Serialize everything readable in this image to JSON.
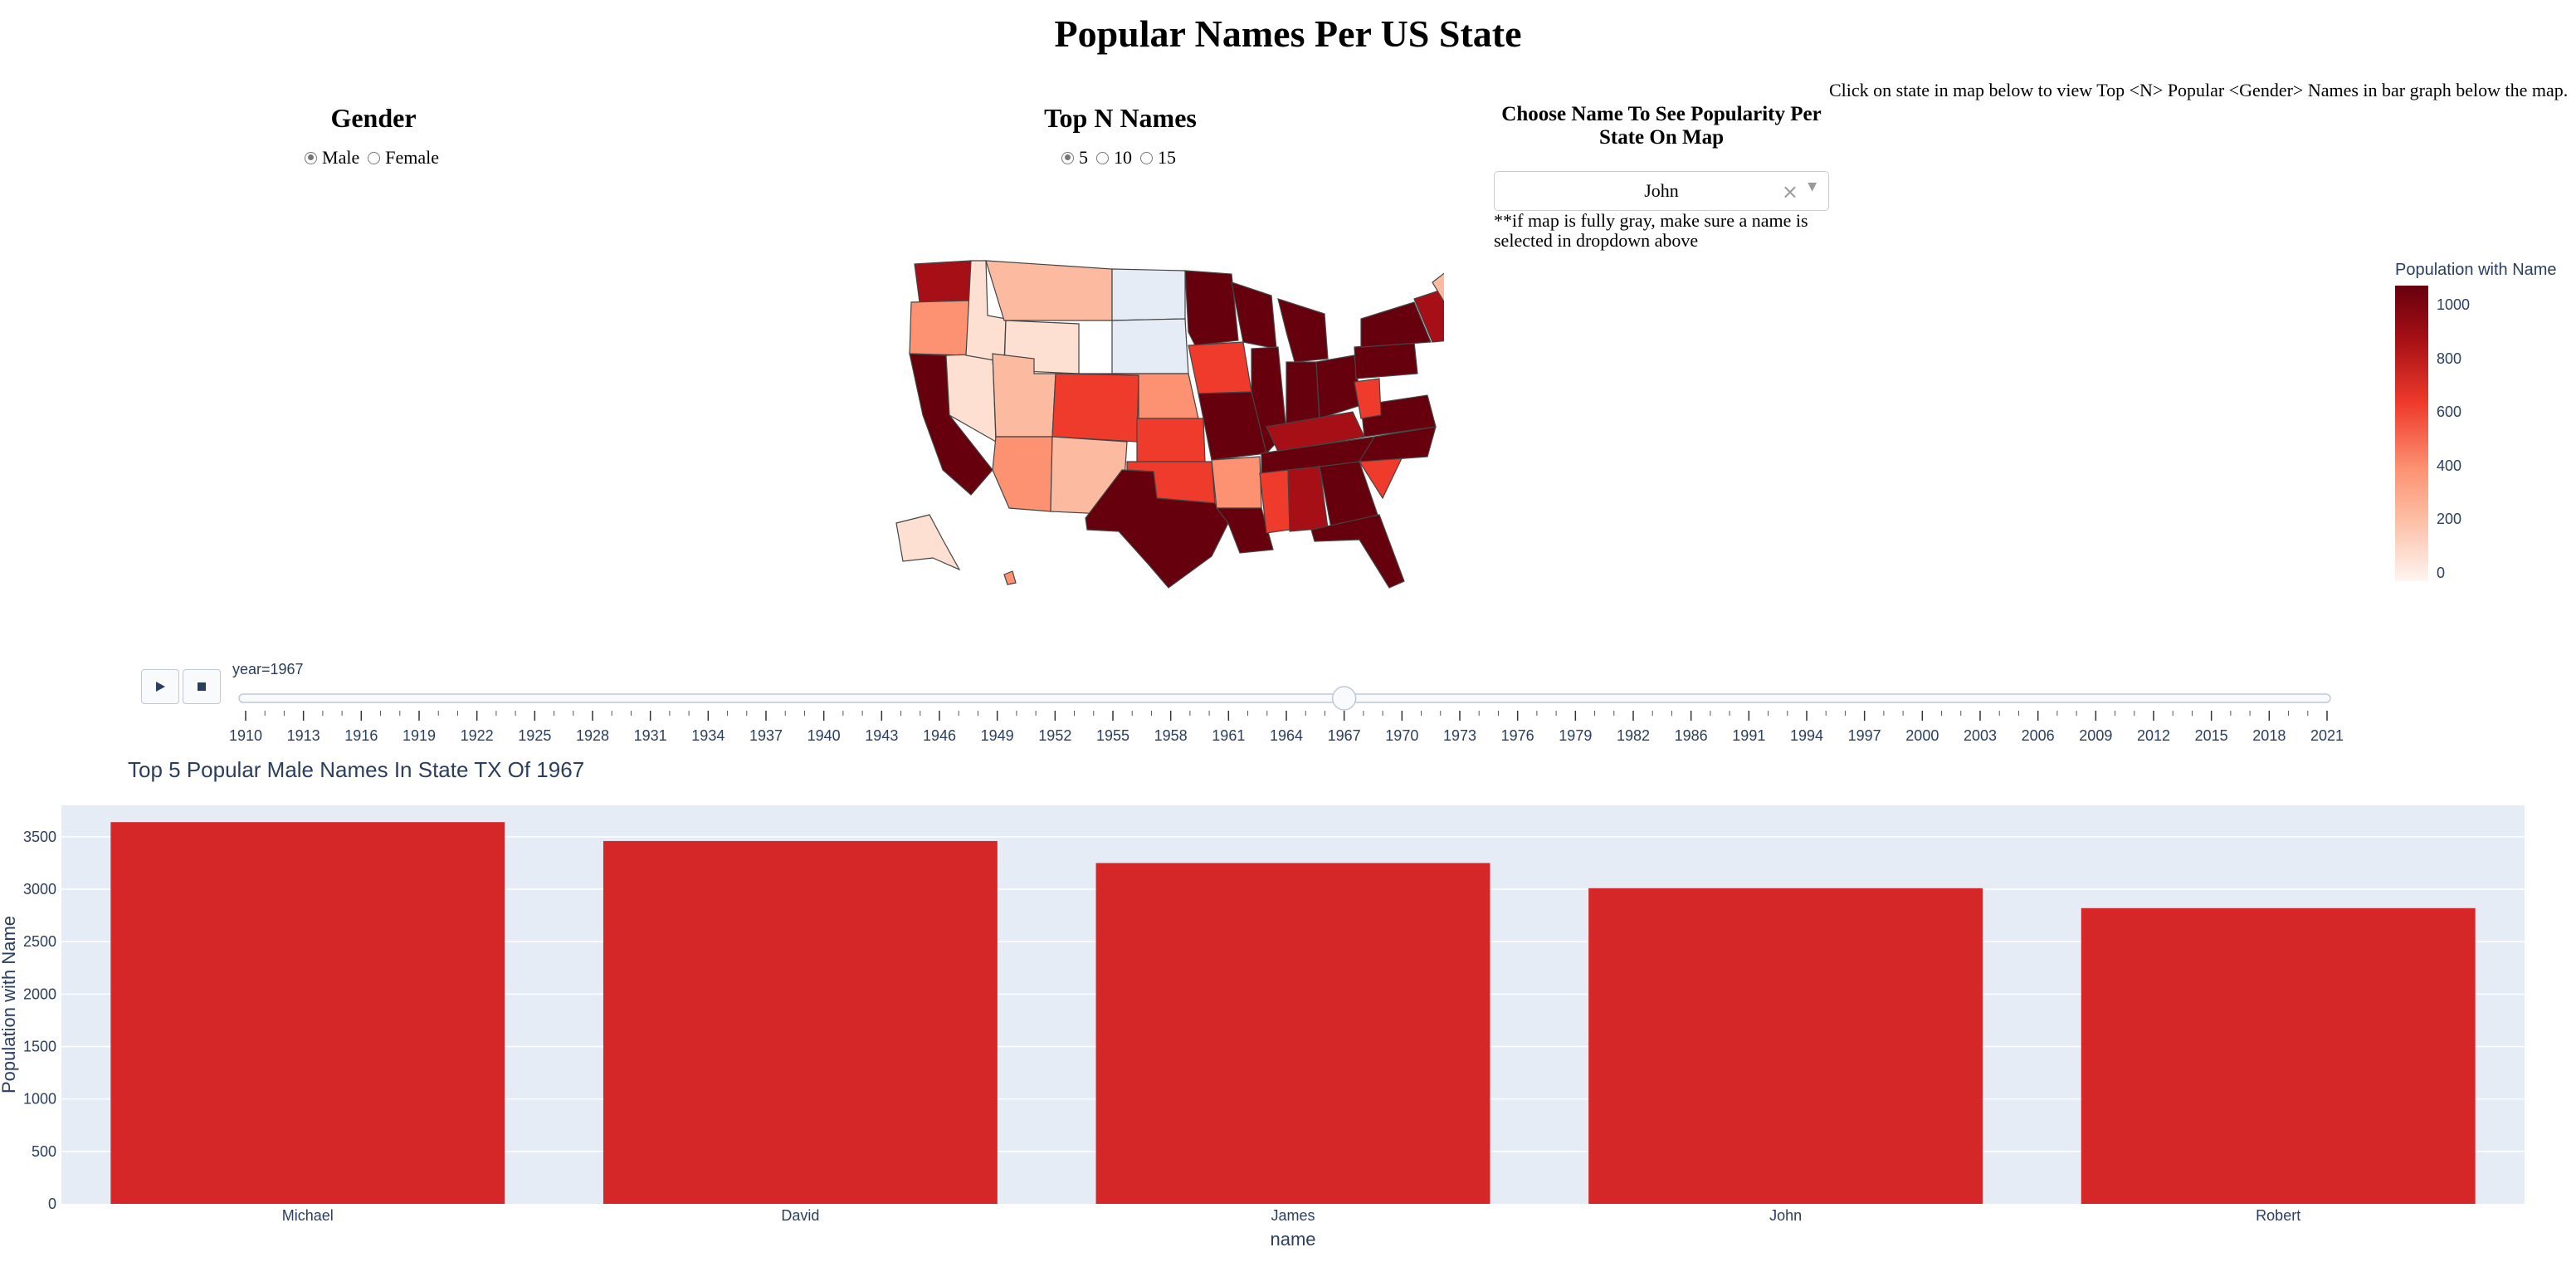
{
  "page": {
    "title": "Popular Names Per US State"
  },
  "gender": {
    "heading": "Gender",
    "options": [
      {
        "label": "Male",
        "selected": true
      },
      {
        "label": "Female",
        "selected": false
      }
    ]
  },
  "topn": {
    "heading": "Top N Names",
    "options": [
      {
        "label": "5",
        "selected": true
      },
      {
        "label": "10",
        "selected": false
      },
      {
        "label": "15",
        "selected": false
      }
    ]
  },
  "name_picker": {
    "heading": "Choose Name To See Popularity Per State On Map",
    "value": "John",
    "note": "**if map is fully gray, make sure a name is selected in dropdown above"
  },
  "instructions": "Click on state in map below to view Top <N> Popular <Gender> Names in bar graph below the map.",
  "map": {
    "colorbar": {
      "title": "Population with Name",
      "ticks": [
        "0",
        "200",
        "400",
        "600",
        "800",
        "1000"
      ]
    },
    "colors": {
      "darkest": "#67000d",
      "dark": "#a50f15",
      "mid": "#ef3b2c",
      "light": "#fc9272",
      "lighter": "#fcbba1",
      "lightest": "#fee0d2",
      "nodata": "#e5ecf6"
    }
  },
  "slider": {
    "label": "year=1967",
    "current_year": 1967,
    "years": [
      "1910",
      "1913",
      "1916",
      "1919",
      "1922",
      "1925",
      "1928",
      "1931",
      "1934",
      "1937",
      "1940",
      "1943",
      "1946",
      "1949",
      "1952",
      "1955",
      "1958",
      "1961",
      "1964",
      "1967",
      "1970",
      "1973",
      "1976",
      "1979",
      "1982",
      "1986",
      "1991",
      "1994",
      "1997",
      "2000",
      "2003",
      "2006",
      "2009",
      "2012",
      "2015",
      "2018",
      "2021"
    ]
  },
  "chart_data": {
    "type": "bar",
    "title": "Top 5 Popular Male Names In State TX Of 1967",
    "categories": [
      "Michael",
      "David",
      "James",
      "John",
      "Robert"
    ],
    "values": [
      3640,
      3460,
      3250,
      3010,
      2820
    ],
    "xlabel": "name",
    "ylabel": "Population with Name",
    "ylim": [
      0,
      3800
    ],
    "yticks": [
      0,
      500,
      1000,
      1500,
      2000,
      2500,
      3000,
      3500
    ],
    "bar_color": "#d62728",
    "plot_bg": "#e5ecf6",
    "grid": true
  }
}
